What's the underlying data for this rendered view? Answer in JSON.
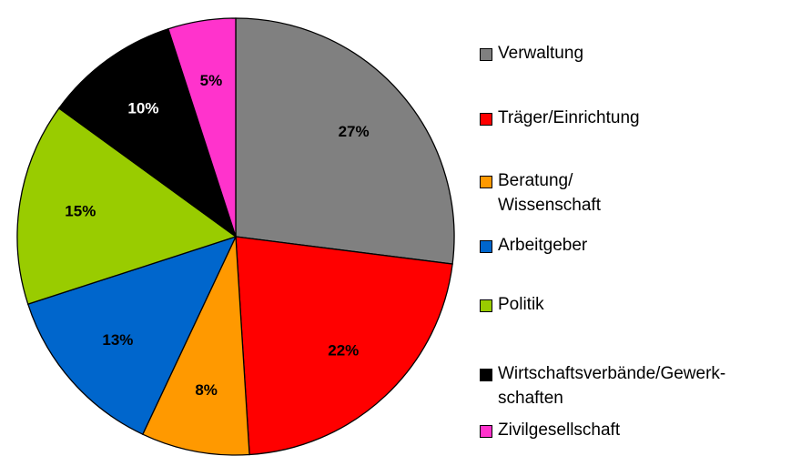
{
  "chart_data": {
    "type": "pie",
    "categories": [
      "Verwaltung",
      "Träger/Einrichtung",
      "Beratung/\nWissenschaft",
      "Arbeitgeber",
      "Politik",
      "Wirtschaftsverbände/Gewerk-\nschaften",
      "Zivilgesellschaft"
    ],
    "values": [
      27,
      22,
      8,
      13,
      15,
      10,
      5
    ],
    "value_labels": [
      "27%",
      "22%",
      "8%",
      "13%",
      "15%",
      "10%",
      "5%"
    ],
    "colors": [
      "#808080",
      "#ff0000",
      "#ff9900",
      "#0066cc",
      "#99cc00",
      "#000000",
      "#ff33cc"
    ],
    "legend": "right"
  }
}
